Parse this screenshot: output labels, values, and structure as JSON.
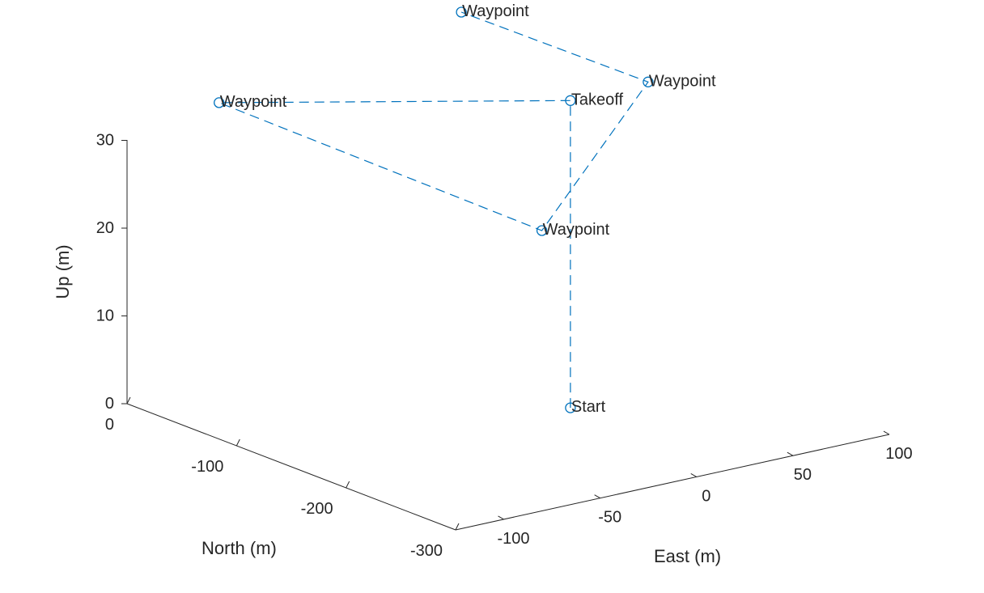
{
  "chart_data": {
    "type": "line3d",
    "xlabel": "East (m)",
    "ylabel": "North (m)",
    "zlabel": "Up (m)",
    "xlim": [
      -125,
      100
    ],
    "ylim": [
      -300,
      0
    ],
    "zlim": [
      0,
      30
    ],
    "xticks": [
      "-100",
      "-50",
      "0",
      "50",
      "100"
    ],
    "yticks": [
      "0",
      "-100",
      "-200",
      "-300"
    ],
    "zticks": [
      "0",
      "10",
      "20",
      "30"
    ],
    "color": "#0072BD",
    "line_style": "dashed",
    "marker": "circle",
    "points": [
      {
        "label": "Start",
        "east": -20,
        "north": -220,
        "up": 5
      },
      {
        "label": "Takeoff",
        "east": -20,
        "north": -220,
        "up": 40
      },
      {
        "label": "Waypoint",
        "east": -100,
        "north": -40,
        "up": 35
      },
      {
        "label": "Waypoint",
        "east": -28,
        "north": -208,
        "up": 25
      },
      {
        "label": "Waypoint",
        "east": 97,
        "north": -85,
        "up": 30
      },
      {
        "label": "Waypoint",
        "east": 20,
        "north": -50,
        "up": 40
      }
    ]
  }
}
